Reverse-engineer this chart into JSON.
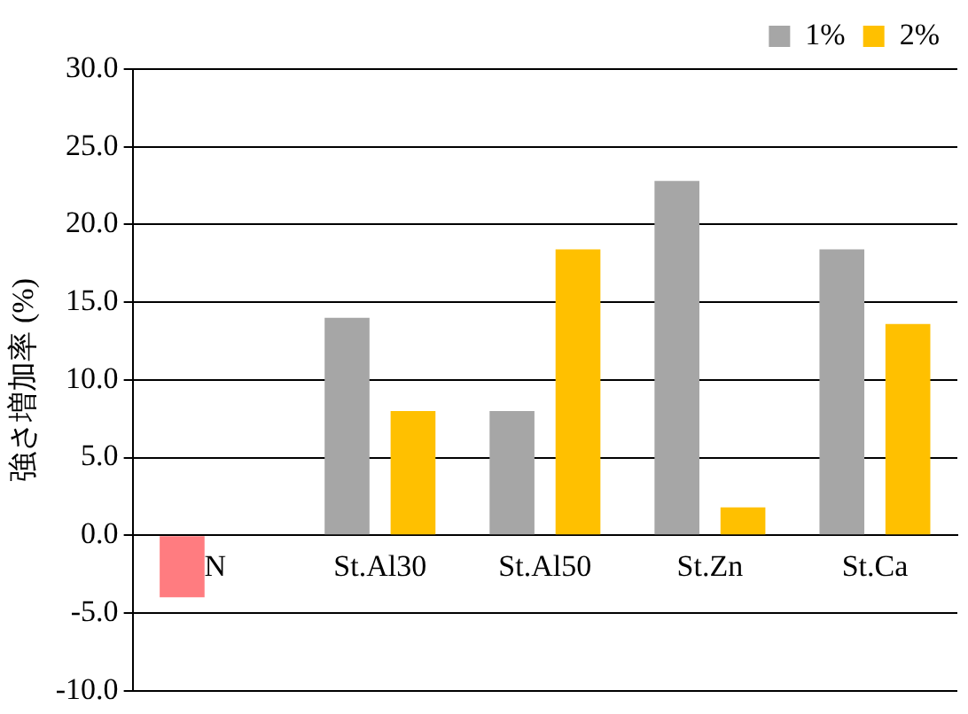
{
  "chart_data": {
    "type": "bar",
    "ylabel": "強さ増加率 (%)",
    "categories": [
      "N",
      "St.Al30",
      "St.Al50",
      "St.Zn",
      "St.Ca"
    ],
    "series": [
      {
        "name": "1%",
        "color": "#a6a6a6",
        "colors": [
          "#ff7c80",
          "#a6a6a6",
          "#a6a6a6",
          "#a6a6a6",
          "#a6a6a6"
        ],
        "values": [
          -4.0,
          14.0,
          8.0,
          22.8,
          18.4
        ]
      },
      {
        "name": "2%",
        "color": "#ffc000",
        "values": [
          null,
          8.0,
          18.4,
          1.8,
          13.6
        ]
      }
    ],
    "ylim": [
      -10,
      30
    ],
    "yticks": [
      {
        "value": -10,
        "label": "-10.0"
      },
      {
        "value": -5,
        "label": "-5.0"
      },
      {
        "value": 0,
        "label": "0.0"
      },
      {
        "value": 5,
        "label": "5.0"
      },
      {
        "value": 10,
        "label": "10.0"
      },
      {
        "value": 15,
        "label": "15.0"
      },
      {
        "value": 20,
        "label": "20.0"
      },
      {
        "value": 25,
        "label": "25.0"
      },
      {
        "value": 30,
        "label": "30.0"
      }
    ],
    "grid": "y",
    "legend": "top right"
  }
}
